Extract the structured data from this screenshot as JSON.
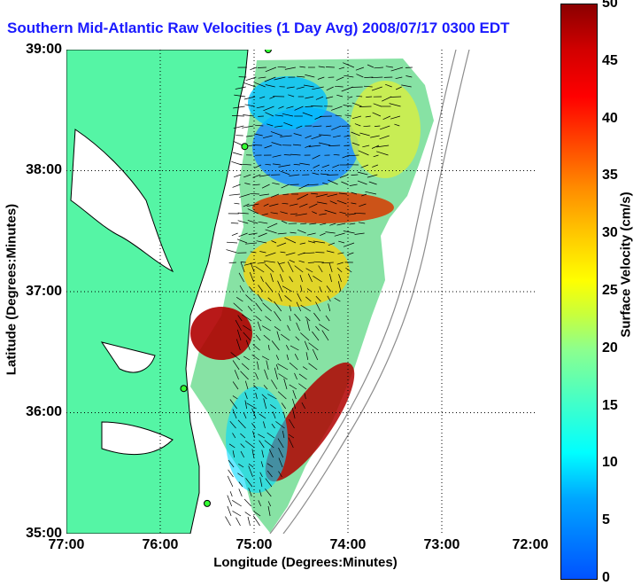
{
  "title": "Southern Mid-Atlantic Raw Velocities (1 Day Avg) 2008/07/17 0300 EDT",
  "map": {
    "x_axis": {
      "label": "Longitude (Degrees:Minutes)",
      "ticks": [
        "77:00",
        "76:00",
        "75:00",
        "74:00",
        "73:00",
        "72:00"
      ],
      "range": [
        -77,
        -72
      ]
    },
    "y_axis": {
      "label": "Latitude (Degrees:Minutes)",
      "ticks": [
        "39:00",
        "38:00",
        "37:00",
        "36:00",
        "35:00"
      ],
      "range": [
        35,
        39
      ]
    },
    "grid": "dotted",
    "land_color": "#55f5a5",
    "coast_color": "#000000",
    "stations": [
      {
        "lon": -74.85,
        "lat": 39.0
      },
      {
        "lon": -75.1,
        "lat": 38.2
      },
      {
        "lon": -75.75,
        "lat": 36.2
      },
      {
        "lon": -75.5,
        "lat": 35.25
      }
    ]
  },
  "colorbar": {
    "label": "Surface Velocity (cm/s)",
    "ticks": [
      "50",
      "45",
      "40",
      "35",
      "30",
      "25",
      "20",
      "15",
      "10",
      "5",
      "0"
    ],
    "range": [
      0,
      50
    ],
    "colormap": [
      "#0052ff",
      "#00ffff",
      "#8dff8d",
      "#ffff00",
      "#ff8c00",
      "#ff0000",
      "#8b0000"
    ]
  }
}
